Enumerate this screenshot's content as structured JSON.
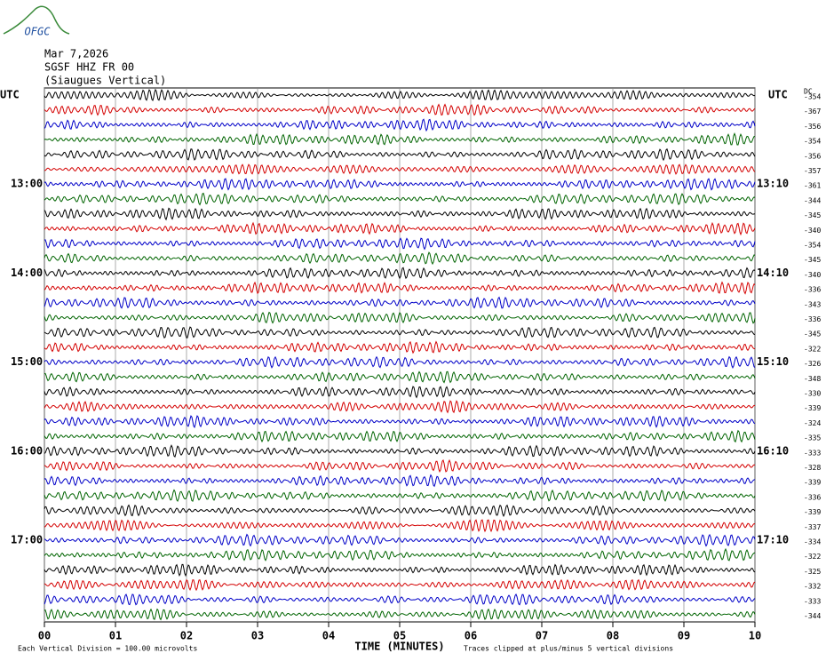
{
  "header": {
    "logo": "OFGC",
    "date": "Mar 7,2026",
    "station": "SGSF HHZ FR 00",
    "location": "(Siaugues Vertical)"
  },
  "left_axis": {
    "label": "UTC",
    "times": [
      "13:00",
      "14:00",
      "15:00",
      "16:00",
      "17:00"
    ]
  },
  "right_axis": {
    "label": "UTC",
    "dc_label": "DC",
    "times": [
      "13:10",
      "14:10",
      "15:10",
      "16:10",
      "17:10"
    ],
    "dc_offsets": [
      "-354",
      "-367",
      "-356",
      "-354",
      "-356",
      "-357",
      "-361",
      "-344",
      "-345",
      "-340",
      "-354",
      "-345",
      "-340",
      "-336",
      "-343",
      "-336",
      "-345",
      "-322",
      "-326",
      "-348",
      "-330",
      "-339",
      "-324",
      "-335",
      "-333",
      "-328",
      "-339",
      "-336",
      "-339",
      "-337",
      "-334",
      "-322",
      "-325",
      "-332",
      "-333",
      "-344"
    ]
  },
  "x_axis": {
    "label": "TIME (MINUTES)",
    "ticks": [
      "00",
      "01",
      "02",
      "03",
      "04",
      "05",
      "06",
      "07",
      "08",
      "09",
      "10"
    ]
  },
  "footer": {
    "scale": "Each Vertical Division =  100.00 microvolts",
    "clip": "Traces clipped at plus/minus 5 vertical divisions"
  },
  "trace_colors": [
    "#000000",
    "#d40000",
    "#0000c8",
    "#006400"
  ]
}
